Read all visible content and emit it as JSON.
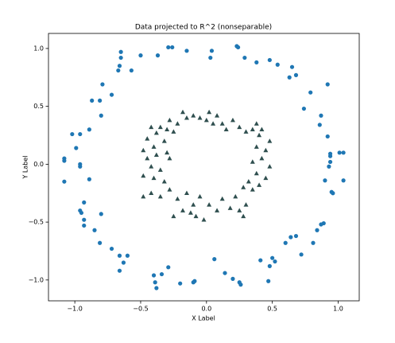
{
  "chart_data": {
    "type": "scatter",
    "title": "Data projected to R^2 (nonseparable)",
    "x_label": "X Label",
    "y_label": "Y Label",
    "xlim": [
      -1.2,
      1.16
    ],
    "ylim": [
      -1.18,
      1.13
    ],
    "xticks": [
      {
        "value": -1.0,
        "label": "−1.0"
      },
      {
        "value": -0.5,
        "label": "−0.5"
      },
      {
        "value": 0.0,
        "label": "0.0"
      },
      {
        "value": 0.5,
        "label": "0.5"
      },
      {
        "value": 1.0,
        "label": "1.0"
      }
    ],
    "yticks": [
      {
        "value": -1.0,
        "label": "−1.0"
      },
      {
        "value": -0.5,
        "label": "−0.5"
      },
      {
        "value": 0.0,
        "label": "0.0"
      },
      {
        "value": 0.5,
        "label": "0.5"
      },
      {
        "value": 1.0,
        "label": "1.0"
      }
    ],
    "grid": false,
    "series": [
      {
        "color": "#1f77b4",
        "marker": "circle",
        "x": [
          -0.29,
          -0.26,
          -0.15,
          -0.37,
          -0.5,
          -0.65,
          -0.65,
          -0.66,
          -0.67,
          -0.57,
          -0.79,
          -0.87,
          -0.81,
          -0.72,
          -0.8,
          -0.89,
          -1.02,
          -0.96,
          -0.99,
          -0.96,
          -0.96,
          -1.08,
          -1.08,
          -1.08,
          -0.89,
          -0.93,
          -0.96,
          -0.95,
          -0.93,
          -0.93,
          -0.8,
          -0.85,
          -0.81,
          -0.72,
          -0.66,
          -0.6,
          -0.63,
          -0.66,
          -0.4,
          -0.34,
          -0.29,
          -0.39,
          -0.38,
          -0.2,
          -0.09,
          -0.1,
          0.06,
          0.14,
          0.2,
          0.25,
          0.26,
          0.41,
          0.48,
          0.52,
          0.5,
          0.47,
          0.6,
          0.64,
          0.68,
          0.72,
          0.81,
          0.84,
          0.87,
          0.89,
          0.9,
          0.95,
          0.96,
          1.04,
          0.93,
          0.94,
          0.94,
          0.94,
          1.01,
          1.04,
          0.92,
          0.86,
          0.87,
          0.74,
          0.79,
          0.92,
          0.68,
          0.63,
          0.65,
          0.54,
          0.48,
          0.38,
          0.29,
          0.24,
          0.23,
          0.04,
          0.03
        ],
        "y": [
          1.01,
          1.01,
          0.98,
          0.94,
          0.94,
          0.97,
          0.92,
          0.85,
          0.81,
          0.81,
          0.69,
          0.55,
          0.55,
          0.6,
          0.42,
          0.3,
          0.26,
          0.26,
          0.14,
          0.0,
          -0.02,
          0.05,
          0.03,
          -0.15,
          -0.13,
          -0.33,
          -0.4,
          -0.42,
          -0.48,
          -0.53,
          -0.43,
          -0.57,
          -0.68,
          -0.73,
          -0.79,
          -0.79,
          -0.85,
          -0.92,
          -0.96,
          -0.95,
          -0.89,
          -1.02,
          -1.07,
          -1.03,
          -1.01,
          -1.02,
          -0.82,
          -0.94,
          -0.99,
          -1.02,
          -1.04,
          -0.83,
          -0.88,
          -0.84,
          -0.81,
          -1.01,
          -0.68,
          -0.63,
          -0.62,
          -0.78,
          -0.68,
          -0.57,
          -0.52,
          -0.51,
          -0.14,
          -0.24,
          -0.25,
          -0.14,
          -0.02,
          0.02,
          0.07,
          0.09,
          0.1,
          0.1,
          0.24,
          0.34,
          0.42,
          0.48,
          0.62,
          0.69,
          0.77,
          0.75,
          0.84,
          0.86,
          0.9,
          0.88,
          0.92,
          1.01,
          1.02,
          0.98,
          0.92
        ]
      },
      {
        "color": "#2f4f4f",
        "marker": "triangle",
        "x": [
          -0.18,
          -0.15,
          -0.22,
          -0.28,
          -0.35,
          -0.42,
          -0.38,
          -0.3,
          -0.25,
          -0.45,
          -0.4,
          -0.32,
          -0.48,
          -0.45,
          -0.38,
          -0.3,
          -0.42,
          -0.35,
          -0.28,
          -0.48,
          -0.4,
          -0.32,
          -0.42,
          -0.48,
          -0.35,
          -0.28,
          -0.22,
          -0.18,
          -0.12,
          -0.08,
          -0.1,
          -0.05,
          -0.15,
          0.02,
          0.08,
          0.12,
          0.18,
          0.22,
          0.25,
          0.3,
          0.35,
          0.28,
          0.32,
          0.4,
          0.45,
          0.38,
          0.48,
          0.42,
          0.35,
          0.45,
          0.38,
          0.48,
          0.4,
          0.35,
          0.3,
          0.25,
          0.38,
          0.2,
          0.12,
          0.05,
          0.0,
          0.08,
          -0.05,
          0.02,
          -0.02,
          0.28,
          -0.25,
          0.42,
          -0.1,
          0.15
        ],
        "y": [
          0.45,
          0.4,
          0.35,
          0.38,
          0.32,
          0.32,
          0.27,
          0.3,
          0.28,
          0.22,
          0.15,
          0.2,
          0.12,
          0.05,
          0.08,
          0.1,
          -0.02,
          -0.05,
          0.05,
          -0.1,
          -0.12,
          -0.15,
          -0.25,
          -0.28,
          -0.28,
          -0.22,
          -0.3,
          -0.4,
          -0.42,
          -0.45,
          -0.35,
          -0.28,
          -0.25,
          -0.35,
          -0.4,
          -0.3,
          -0.38,
          -0.28,
          -0.4,
          -0.35,
          -0.22,
          -0.2,
          -0.15,
          -0.18,
          -0.12,
          -0.08,
          -0.02,
          0.05,
          0.02,
          0.12,
          0.15,
          0.2,
          0.25,
          0.3,
          0.28,
          0.32,
          0.35,
          0.38,
          0.35,
          0.35,
          0.38,
          0.42,
          0.4,
          0.45,
          -0.48,
          -0.45,
          -0.45,
          0.3,
          0.42,
          0.3
        ]
      }
    ]
  }
}
